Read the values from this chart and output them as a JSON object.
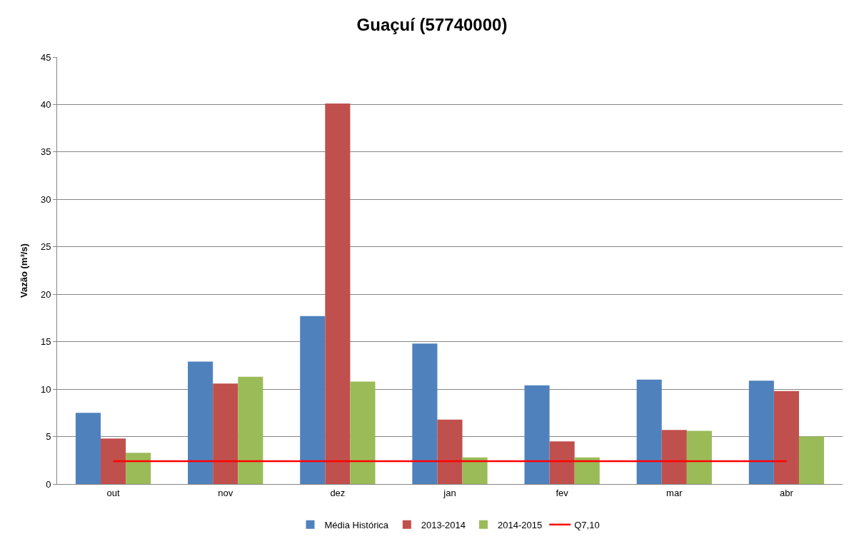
{
  "chart_data": {
    "type": "bar",
    "title": "Guaçuí (57740000)",
    "ylabel": "Vazão (m³/s)",
    "categories": [
      "out",
      "nov",
      "dez",
      "jan",
      "fev",
      "mar",
      "abr"
    ],
    "series": [
      {
        "name": "Média Histórica",
        "color": "#4f81bd",
        "values": [
          7.5,
          12.9,
          17.7,
          14.8,
          10.4,
          11.0,
          10.9
        ]
      },
      {
        "name": "2013-2014",
        "color": "#c0504d",
        "values": [
          4.8,
          10.6,
          40.1,
          6.8,
          4.5,
          5.7,
          9.8
        ]
      },
      {
        "name": "2014-2015",
        "color": "#9bbb59",
        "values": [
          3.3,
          11.3,
          10.8,
          2.8,
          2.8,
          5.6,
          5.0
        ]
      },
      {
        "name": "Q7,10",
        "type": "line",
        "color": "#ff0000",
        "values": [
          2.4,
          2.4,
          2.4,
          2.4,
          2.4,
          2.4,
          2.4
        ]
      }
    ],
    "ylim": [
      0,
      45
    ],
    "yticks": [
      0,
      5,
      10,
      15,
      20,
      25,
      30,
      35,
      40,
      45
    ],
    "grid": "y",
    "legend": "bottom",
    "marker": "none"
  }
}
